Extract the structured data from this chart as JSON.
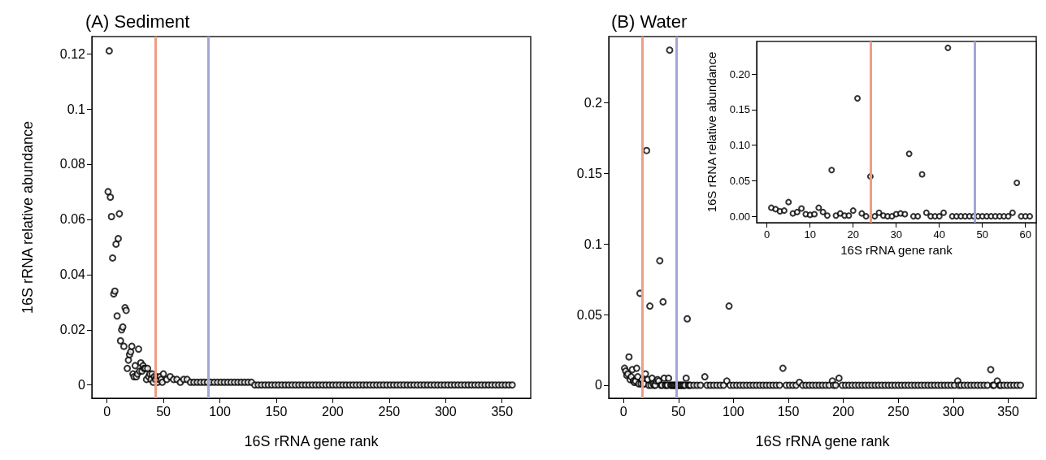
{
  "chart_data": [
    {
      "type": "scatter",
      "title": "(A) Sediment",
      "xlabel": "16S rRNA gene rank",
      "ylabel": "16S rRNA relative abundance",
      "marker": "circle",
      "color": "#000000",
      "xlim": [
        -13.4,
        375.4
      ],
      "xticks": [
        0,
        50,
        100,
        150,
        200,
        250,
        300,
        350
      ],
      "ylim": [
        -0.0048,
        0.1262
      ],
      "yticks": [
        0,
        0.02,
        0.04,
        0.06,
        0.08,
        0.1,
        0.12
      ],
      "ref_lines": [
        {
          "axis": "x",
          "value": 43,
          "color": "#ee9e84"
        },
        {
          "axis": "x",
          "value": 90,
          "color": "#a3a6d6"
        }
      ],
      "x": [
        1,
        2,
        3,
        4,
        5,
        6,
        7,
        8,
        9,
        10,
        11,
        12,
        13,
        14,
        15,
        16,
        17,
        18,
        19,
        20,
        21,
        22,
        23,
        24,
        25,
        26,
        27,
        28,
        29,
        30,
        31,
        32,
        33,
        34,
        35,
        36,
        37,
        38,
        39,
        40,
        41,
        42,
        43,
        44,
        45,
        46,
        47,
        48,
        49,
        50,
        53,
        56,
        59,
        62,
        65,
        68,
        71,
        74,
        77,
        80,
        83,
        86,
        89,
        92,
        95,
        98,
        101,
        104,
        107,
        110,
        113,
        116,
        119,
        122,
        125,
        128,
        131,
        134,
        137,
        140,
        143,
        146,
        149,
        152,
        155,
        158,
        161,
        164,
        167,
        170,
        173,
        176,
        179,
        182,
        185,
        188,
        191,
        194,
        197,
        200,
        203,
        206,
        209,
        212,
        215,
        218,
        221,
        224,
        227,
        230,
        233,
        236,
        239,
        242,
        245,
        248,
        251,
        254,
        257,
        260,
        263,
        266,
        269,
        272,
        275,
        278,
        281,
        284,
        287,
        290,
        293,
        296,
        299,
        302,
        305,
        308,
        311,
        314,
        317,
        320,
        323,
        326,
        329,
        332,
        335,
        338,
        341,
        344,
        347,
        350,
        353,
        356,
        359
      ],
      "values": [
        0.07,
        0.121,
        0.068,
        0.061,
        0.046,
        0.033,
        0.034,
        0.051,
        0.025,
        0.053,
        0.062,
        0.016,
        0.02,
        0.021,
        0.014,
        0.028,
        0.027,
        0.006,
        0.009,
        0.011,
        0.012,
        0.014,
        0.004,
        0.003,
        0.007,
        0.003,
        0.004,
        0.013,
        0.005,
        0.008,
        0.005,
        0.007,
        0.006,
        0.006,
        0.002,
        0.006,
        0.003,
        0.004,
        0.002,
        0.004,
        0.001,
        0.003,
        0.002,
        0.003,
        0.001,
        0.002,
        0.003,
        0.002,
        0.001,
        0.004,
        0.002,
        0.003,
        0.002,
        0.002,
        0.001,
        0.002,
        0.002,
        0.001,
        0.001,
        0.001,
        0.001,
        0.001,
        0.001,
        0.001,
        0.001,
        0.001,
        0.001,
        0.001,
        0.001,
        0.001,
        0.001,
        0.001,
        0.001,
        0.001,
        0.001,
        0.001,
        0,
        0,
        0,
        0,
        0,
        0,
        0,
        0,
        0,
        0,
        0,
        0,
        0,
        0,
        0,
        0,
        0,
        0,
        0,
        0,
        0,
        0,
        0,
        0,
        0,
        0,
        0,
        0,
        0,
        0,
        0,
        0,
        0,
        0,
        0,
        0,
        0,
        0,
        0,
        0,
        0,
        0,
        0,
        0,
        0,
        0,
        0,
        0,
        0,
        0,
        0,
        0,
        0,
        0,
        0,
        0,
        0,
        0,
        0,
        0,
        0,
        0,
        0,
        0,
        0,
        0,
        0,
        0,
        0,
        0,
        0,
        0,
        0,
        0,
        0,
        0,
        0
      ]
    },
    {
      "type": "scatter",
      "title": "(B) Water",
      "xlabel": "16S rRNA gene rank",
      "marker": "circle",
      "color": "#000000",
      "xlim": [
        -13.4,
        375.4
      ],
      "xticks": [
        0,
        50,
        100,
        150,
        200,
        250,
        300,
        350
      ],
      "ylim": [
        -0.0092,
        0.2466
      ],
      "yticks": [
        0,
        0.05,
        0.1,
        0.15,
        0.2
      ],
      "ref_lines": [
        {
          "axis": "x",
          "value": 17,
          "color": "#ee9e84"
        },
        {
          "axis": "x",
          "value": 48,
          "color": "#a3a6d6"
        }
      ],
      "x": [
        1,
        2,
        3,
        4,
        5,
        6,
        7,
        8,
        9,
        10,
        11,
        12,
        13,
        14,
        15,
        16,
        17,
        18,
        19,
        20,
        21,
        22,
        23,
        24,
        25,
        26,
        27,
        28,
        29,
        30,
        31,
        32,
        33,
        34,
        35,
        36,
        37,
        38,
        39,
        40,
        41,
        42,
        43,
        44,
        45,
        46,
        47,
        48,
        49,
        50,
        51,
        52,
        53,
        54,
        55,
        56,
        57,
        58,
        59,
        60,
        61,
        64,
        67,
        70,
        74,
        76,
        79,
        82,
        85,
        88,
        91,
        94,
        96,
        97,
        100,
        103,
        106,
        109,
        112,
        115,
        118,
        121,
        124,
        127,
        130,
        133,
        136,
        139,
        142,
        145,
        148,
        151,
        154,
        157,
        160,
        163,
        166,
        169,
        172,
        175,
        178,
        181,
        184,
        187,
        190,
        191,
        193,
        196,
        199,
        202,
        205,
        208,
        211,
        214,
        217,
        220,
        223,
        226,
        229,
        232,
        235,
        238,
        241,
        244,
        247,
        250,
        253,
        256,
        259,
        262,
        265,
        268,
        271,
        274,
        277,
        280,
        283,
        286,
        289,
        292,
        295,
        298,
        301,
        304,
        305,
        307,
        310,
        313,
        316,
        319,
        322,
        325,
        328,
        331,
        334,
        336,
        337,
        340,
        342,
        343,
        346,
        349,
        352,
        355,
        358,
        361
      ],
      "values": [
        0.012,
        0.01,
        0.007,
        0.008,
        0.02,
        0.004,
        0.006,
        0.011,
        0.003,
        0.002,
        0.003,
        0.012,
        0.006,
        0.001,
        0.065,
        0.001,
        0.004,
        0.001,
        0.001,
        0.008,
        0.166,
        0.004,
        0,
        0.056,
        0,
        0.005,
        0.001,
        0,
        0,
        0.003,
        0.004,
        0.003,
        0.088,
        0,
        0,
        0.059,
        0.005,
        0,
        0,
        0,
        0.005,
        0.237,
        0,
        0,
        0,
        0,
        0,
        0,
        0,
        0,
        0,
        0,
        0,
        0,
        0,
        0,
        0.005,
        0.047,
        0,
        0,
        0,
        0,
        0,
        0,
        0.006,
        0,
        0,
        0,
        0,
        0,
        0,
        0.003,
        0.056,
        0,
        0,
        0,
        0,
        0,
        0,
        0,
        0,
        0,
        0,
        0,
        0,
        0,
        0,
        0,
        0,
        0.012,
        0,
        0,
        0,
        0,
        0.002,
        0,
        0,
        0,
        0,
        0,
        0,
        0,
        0,
        0,
        0.003,
        0,
        0,
        0.005,
        0,
        0,
        0,
        0,
        0,
        0,
        0,
        0,
        0,
        0,
        0,
        0,
        0,
        0,
        0,
        0,
        0,
        0,
        0,
        0,
        0,
        0,
        0,
        0,
        0,
        0,
        0,
        0,
        0,
        0,
        0,
        0,
        0,
        0,
        0,
        0.003,
        0,
        0,
        0,
        0,
        0,
        0,
        0,
        0,
        0,
        0,
        0.011,
        0,
        0,
        0.003,
        0,
        0,
        0,
        0,
        0,
        0,
        0,
        0
      ]
    },
    {
      "type": "scatter",
      "xlabel": "16S rRNA gene rank",
      "ylabel": "16S rRNA relative abundance",
      "marker": "circle",
      "color": "#000000",
      "xlim": [
        -2.4,
        62.5
      ],
      "xticks": [
        0,
        10,
        20,
        30,
        40,
        50,
        60
      ],
      "ylim": [
        -0.009,
        0.246
      ],
      "yticks": [
        {
          "value": 0,
          "label": "0.00"
        },
        {
          "value": 0.05,
          "label": "0.05"
        },
        {
          "value": 0.1,
          "label": "0.10"
        },
        {
          "value": 0.15,
          "label": "0.15"
        },
        {
          "value": 0.2,
          "label": "0.20"
        }
      ],
      "ref_lines": [
        {
          "axis": "x",
          "value": 24,
          "color": "#ee9e84"
        },
        {
          "axis": "x",
          "value": 48.3,
          "color": "#a3a6d6"
        }
      ],
      "x": [
        1,
        2,
        3,
        4,
        5,
        6,
        7,
        8,
        9,
        10,
        11,
        12,
        13,
        14,
        15,
        16,
        17,
        18,
        19,
        20,
        21,
        22,
        23,
        24,
        25,
        26,
        27,
        28,
        29,
        30,
        31,
        32,
        33,
        34,
        35,
        36,
        37,
        38,
        39,
        40,
        41,
        42,
        43,
        44,
        45,
        46,
        47,
        48,
        49,
        50,
        51,
        52,
        53,
        54,
        55,
        56,
        57,
        58,
        59,
        60,
        61
      ],
      "values": [
        0.012,
        0.01,
        0.007,
        0.008,
        0.02,
        0.004,
        0.006,
        0.011,
        0.003,
        0.002,
        0.003,
        0.012,
        0.006,
        0.001,
        0.065,
        0.001,
        0.004,
        0.001,
        0.001,
        0.008,
        0.166,
        0.004,
        0,
        0.056,
        0,
        0.005,
        0.001,
        0,
        0,
        0.003,
        0.004,
        0.003,
        0.088,
        0,
        0,
        0.059,
        0.005,
        0,
        0,
        0,
        0.005,
        0.237,
        0,
        0,
        0,
        0,
        0,
        0,
        0,
        0,
        0,
        0,
        0,
        0,
        0,
        0,
        0.005,
        0.047,
        0,
        0,
        0
      ]
    }
  ]
}
